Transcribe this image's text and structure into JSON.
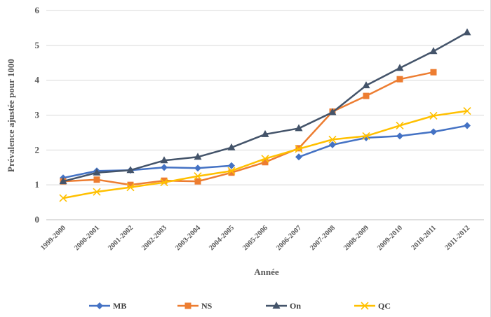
{
  "chart_data": {
    "type": "line",
    "title": "",
    "xlabel": "Année",
    "ylabel": "Prévalence ajustée pour 1000",
    "categories": [
      "1999-2000",
      "2000-2001",
      "2001-2002",
      "2002-2003",
      "2003-2004",
      "2004-2005",
      "2005-2006",
      "2006-2007",
      "2007-2008",
      "2008-2009",
      "2009-2010",
      "2010-2011",
      "2011-2012"
    ],
    "ylim": [
      0,
      6
    ],
    "yticks": [
      0,
      1,
      2,
      3,
      4,
      5,
      6
    ],
    "grid": "horizontal",
    "legend_position": "bottom",
    "series": [
      {
        "name": "MB",
        "color": "#4472C4",
        "marker": "diamond",
        "values": [
          1.2,
          1.4,
          1.42,
          1.5,
          1.48,
          1.55,
          null,
          1.8,
          2.15,
          2.35,
          2.4,
          2.52,
          2.7
        ],
        "segments": [
          [
            0,
            5
          ],
          [
            7,
            12
          ]
        ]
      },
      {
        "name": "NS",
        "color": "#ED7D31",
        "marker": "square",
        "values": [
          1.1,
          1.15,
          1.0,
          1.12,
          1.1,
          1.35,
          1.65,
          2.05,
          3.1,
          3.55,
          4.03,
          4.23,
          null
        ],
        "segments": [
          [
            0,
            11
          ]
        ]
      },
      {
        "name": "On",
        "color": "#44546A",
        "marker": "triangle",
        "values": [
          1.1,
          1.35,
          1.42,
          1.7,
          1.8,
          2.07,
          2.45,
          2.62,
          3.08,
          3.85,
          4.35,
          4.83,
          5.37
        ],
        "segments": [
          [
            0,
            12
          ]
        ]
      },
      {
        "name": "QC",
        "color": "#FFC000",
        "marker": "x",
        "values": [
          0.62,
          0.8,
          0.93,
          1.07,
          1.25,
          1.4,
          1.75,
          2.03,
          2.3,
          2.4,
          2.7,
          2.98,
          3.12
        ],
        "segments": [
          [
            0,
            12
          ]
        ]
      }
    ]
  }
}
